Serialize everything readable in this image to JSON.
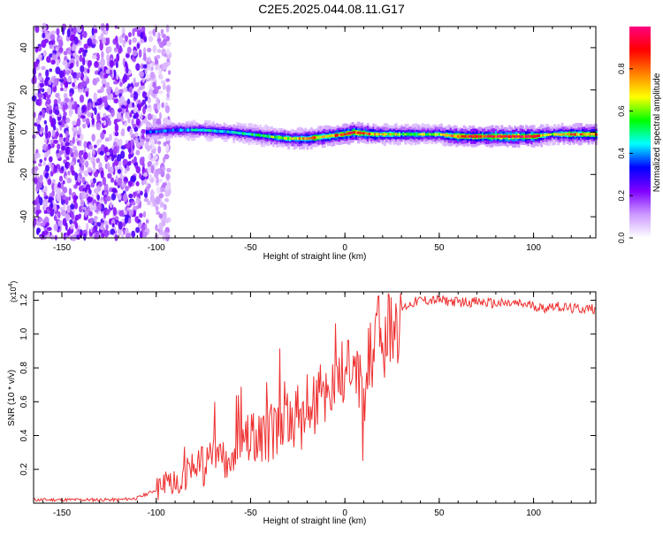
{
  "title": "C2E5.2025.044.08.11.G17",
  "chart_data": [
    {
      "type": "heatmap",
      "xlabel": "Height of straight line (km)",
      "ylabel": "Frequency (Hz)",
      "xlim": [
        -165,
        133
      ],
      "ylim": [
        -50,
        50
      ],
      "x_ticks": [
        -150,
        -100,
        -50,
        0,
        50,
        100
      ],
      "y_ticks": [
        -40,
        -20,
        0,
        20,
        40
      ],
      "colorbar": {
        "label": "Normalized spectral amplitude",
        "range": [
          0,
          1
        ],
        "ticks": [
          0.0,
          0.2,
          0.4,
          0.6,
          0.8
        ],
        "colors": [
          "#ffffff",
          "#cc99ff",
          "#7f00ff",
          "#0000ff",
          "#00ffff",
          "#00ff00",
          "#ffff00",
          "#ff8000",
          "#ff0000",
          "#ff0080"
        ]
      },
      "noise_region_x": [
        -165,
        -105
      ],
      "ridge": [
        {
          "x": -105,
          "y": 0,
          "amp": 0.35
        },
        {
          "x": -90,
          "y": 1,
          "amp": 0.4
        },
        {
          "x": -75,
          "y": 1,
          "amp": 0.45
        },
        {
          "x": -60,
          "y": 0,
          "amp": 0.45
        },
        {
          "x": -50,
          "y": -1,
          "amp": 0.5
        },
        {
          "x": -40,
          "y": -2,
          "amp": 0.55
        },
        {
          "x": -30,
          "y": -3,
          "amp": 0.65
        },
        {
          "x": -20,
          "y": -3,
          "amp": 0.75
        },
        {
          "x": -10,
          "y": -2,
          "amp": 0.75
        },
        {
          "x": 0,
          "y": -1,
          "amp": 0.85
        },
        {
          "x": 5,
          "y": 0,
          "amp": 0.9
        },
        {
          "x": 15,
          "y": -1,
          "amp": 0.75
        },
        {
          "x": 30,
          "y": -1,
          "amp": 0.6
        },
        {
          "x": 50,
          "y": -1,
          "amp": 0.6
        },
        {
          "x": 60,
          "y": -2,
          "amp": 0.85
        },
        {
          "x": 80,
          "y": -2,
          "amp": 0.9
        },
        {
          "x": 100,
          "y": -2,
          "amp": 0.9
        },
        {
          "x": 110,
          "y": -1,
          "amp": 0.55
        },
        {
          "x": 120,
          "y": -1,
          "amp": 0.8
        },
        {
          "x": 133,
          "y": -1,
          "amp": 0.8
        }
      ]
    },
    {
      "type": "line",
      "xlabel": "Height of straight line (km)",
      "ylabel": "SNR (10 * v/v)",
      "y_multiplier": "(x10",
      "y_multiplier_exp": "4",
      "xlim": [
        -165,
        133
      ],
      "ylim": [
        0,
        1.25
      ],
      "x_ticks": [
        -150,
        -100,
        -50,
        0,
        50,
        100
      ],
      "y_ticks": [
        0.2,
        0.4,
        0.6,
        0.8,
        1.0,
        1.2
      ],
      "series": [
        {
          "color": "#ee3030",
          "x": [
            -165,
            -140,
            -120,
            -110,
            -100,
            -95,
            -90,
            -85,
            -80,
            -75,
            -70,
            -65,
            -60,
            -55,
            -50,
            -45,
            -40,
            -35,
            -30,
            -25,
            -20,
            -15,
            -10,
            -5,
            0,
            5,
            8,
            10,
            12,
            15,
            20,
            25,
            30,
            35,
            40,
            50,
            60,
            70,
            80,
            90,
            100,
            105,
            110,
            115,
            120,
            125,
            133
          ],
          "y": [
            0.02,
            0.02,
            0.02,
            0.03,
            0.08,
            0.12,
            0.14,
            0.17,
            0.2,
            0.22,
            0.25,
            0.28,
            0.3,
            0.35,
            0.38,
            0.4,
            0.42,
            0.45,
            0.48,
            0.5,
            0.55,
            0.6,
            0.65,
            0.72,
            0.78,
            0.82,
            0.7,
            0.45,
            0.75,
            0.9,
            1.0,
            1.08,
            1.15,
            1.18,
            1.2,
            1.2,
            1.19,
            1.19,
            1.18,
            1.18,
            1.17,
            1.15,
            1.17,
            1.16,
            1.15,
            1.15,
            1.15
          ]
        }
      ]
    }
  ]
}
